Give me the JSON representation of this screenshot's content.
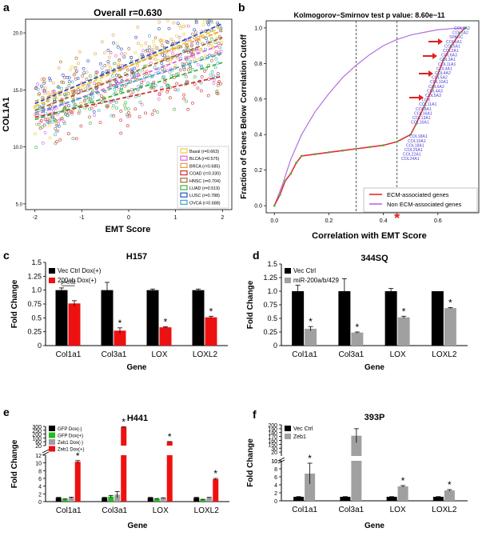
{
  "chart_data": [
    {
      "panel": "a",
      "type": "scatter",
      "title": "Overall r=0.630",
      "xlabel": "EMT Score",
      "ylabel": "COL1A1",
      "xlim": [
        -2.2,
        2.2
      ],
      "ylim": [
        4.5,
        21.2
      ],
      "xticks": [
        -2,
        -1,
        0,
        1,
        2
      ],
      "xtick_labels": [
        "-2",
        "-1",
        "0",
        "1",
        "2"
      ],
      "yticks": [
        5,
        10,
        15,
        20
      ],
      "ytick_labels": [
        "5.0",
        "10.0",
        "15.0",
        "20.0"
      ],
      "legend_position": "bottom-right",
      "series": [
        {
          "name": "Basal (r=0.663)",
          "color": "#e8d23a",
          "fit": [
            [
              -2,
              13.6
            ],
            [
              2,
              20.5
            ]
          ]
        },
        {
          "name": "BLCA (r=0.575)",
          "color": "#e060e0",
          "fit": [
            [
              -2,
              12.8
            ],
            [
              2,
              19.0
            ]
          ]
        },
        {
          "name": "BRCA (r=0.685)",
          "color": "#e8a040",
          "fit": [
            [
              -2,
              14.0
            ],
            [
              2,
              20.2
            ]
          ]
        },
        {
          "name": "COAD (r=0.330)",
          "color": "#d03030",
          "fit": [
            [
              -2,
              12.6
            ],
            [
              2,
              16.2
            ]
          ]
        },
        {
          "name": "HNSC (r=0.704)",
          "color": "#a06830",
          "fit": [
            [
              -2,
              13.2
            ],
            [
              2,
              19.6
            ]
          ]
        },
        {
          "name": "LUAD (r=0.519)",
          "color": "#40b040",
          "fit": [
            [
              -2,
              12.4
            ],
            [
              2,
              17.4
            ]
          ]
        },
        {
          "name": "LUSC (r=0.788)",
          "color": "#3050c0",
          "fit": [
            [
              -2,
              13.8
            ],
            [
              2,
              20.8
            ]
          ]
        },
        {
          "name": "OVCA (r=0.688)",
          "color": "#40a8c8",
          "fit": [
            [
              -2,
              13.0
            ],
            [
              2,
              18.2
            ]
          ]
        }
      ]
    },
    {
      "panel": "b",
      "type": "line",
      "title": "Kolmogorov−Smirnov test p value: 8.60e−11",
      "xlabel": "Correlation with EMT Score",
      "ylabel": "Fraction of Genes Below Correlation Cutoff",
      "xlim": [
        -0.03,
        0.75
      ],
      "ylim": [
        -0.04,
        1.04
      ],
      "xticks": [
        0,
        0.2,
        0.4,
        0.6
      ],
      "xtick_labels": [
        "0.0",
        "0.2",
        "0.4",
        "0.6"
      ],
      "yticks": [
        0,
        0.2,
        0.4,
        0.6,
        0.8,
        1
      ],
      "ytick_labels": [
        "0.0",
        "0.2",
        "0.4",
        "0.6",
        "0.8",
        "1.0"
      ],
      "vlines": [
        0.3,
        0.45
      ],
      "asterisk_x": 0.45,
      "series": [
        {
          "name": "ECM-associated genes",
          "color": "#e03030",
          "x": [
            0.0,
            0.02,
            0.04,
            0.06,
            0.08,
            0.1,
            0.15,
            0.2,
            0.25,
            0.3,
            0.35,
            0.4,
            0.45,
            0.5,
            0.52,
            0.55,
            0.58,
            0.6,
            0.62,
            0.65,
            0.68,
            0.7
          ],
          "y": [
            0.0,
            0.06,
            0.14,
            0.18,
            0.24,
            0.28,
            0.29,
            0.3,
            0.31,
            0.32,
            0.33,
            0.34,
            0.36,
            0.4,
            0.46,
            0.56,
            0.66,
            0.74,
            0.82,
            0.9,
            0.97,
            1.0
          ]
        },
        {
          "name": "Non ECM-associated genes",
          "color": "#b070e0",
          "x": [
            0.0,
            0.03,
            0.06,
            0.1,
            0.15,
            0.2,
            0.25,
            0.3,
            0.35,
            0.4,
            0.45,
            0.5,
            0.55,
            0.6,
            0.65,
            0.7
          ],
          "y": [
            0.0,
            0.12,
            0.26,
            0.4,
            0.53,
            0.63,
            0.72,
            0.79,
            0.85,
            0.9,
            0.935,
            0.96,
            0.975,
            0.99,
            0.996,
            1.0
          ]
        }
      ],
      "gene_labels": [
        "COL1A2",
        "COL1A2",
        "SPARC",
        "COL6A1",
        "COL5A1",
        "COL2A1",
        "COL6A3",
        "COL3A1",
        "COL11A1",
        "COL4A1",
        "COL4A2",
        "COL5A2",
        "COL10A1",
        "COL6A2",
        "COL4A3",
        "COL5A3",
        "LOX",
        "COL11A1",
        "COL8A1",
        "COL16A1",
        "COL13A1",
        "COL16A1",
        "COL18A1",
        "COL10A1",
        "COL18A1",
        "COL25A1",
        "COL22A1",
        "COL24A1"
      ]
    },
    {
      "panel": "c",
      "type": "bar",
      "title": "H157",
      "xlabel": "Gene",
      "ylabel": "Fold Change",
      "ylim": [
        0,
        1.5
      ],
      "yticks": [
        0,
        0.25,
        0.5,
        0.75,
        1,
        1.25,
        1.5
      ],
      "ytick_labels": [
        "0",
        "0.25",
        "0.5",
        "0.75",
        "1.0",
        "1.25",
        "1.5"
      ],
      "categories": [
        "Col1a1",
        "Col3a1",
        "LOX",
        "LOXL2"
      ],
      "series": [
        {
          "name": "Vec Ctrl Dox(+)",
          "color": "#000000",
          "values": [
            1.0,
            1.0,
            1.0,
            1.0
          ],
          "errors": [
            0.04,
            0.14,
            0.02,
            0.02
          ]
        },
        {
          "name": "200ab Dox(+)",
          "color": "#ee1111",
          "values": [
            0.76,
            0.27,
            0.33,
            0.51
          ],
          "errors": [
            0.05,
            0.05,
            0.01,
            0.02
          ]
        }
      ],
      "significance": [
        "",
        "*",
        "*",
        "*"
      ],
      "annotation": "p=0.02"
    },
    {
      "panel": "d",
      "type": "bar",
      "title": "344SQ",
      "xlabel": "Gene",
      "ylabel": "Fold Change",
      "ylim": [
        0,
        1.5
      ],
      "yticks": [
        0,
        0.25,
        0.5,
        0.75,
        1,
        1.25,
        1.5
      ],
      "ytick_labels": [
        "0",
        "0.25",
        "0.5",
        "0.75",
        "1.0",
        "1.25",
        "1.5"
      ],
      "categories": [
        "Col1a1",
        "Col3a1",
        "LOX",
        "LOXL2"
      ],
      "series": [
        {
          "name": "Vec Ctrl",
          "color": "#000000",
          "values": [
            1.0,
            1.0,
            1.0,
            1.0
          ],
          "errors": [
            0.11,
            0.23,
            0.05,
            0.0
          ]
        },
        {
          "name": "miR-200a/b/429",
          "color": "#a0a0a0",
          "values": [
            0.31,
            0.24,
            0.52,
            0.69
          ],
          "errors": [
            0.04,
            0.01,
            0.02,
            0.01
          ]
        }
      ],
      "significance": [
        "*",
        "*",
        "*",
        "*"
      ]
    },
    {
      "panel": "e",
      "type": "bar",
      "title": "H441",
      "xlabel": "Gene",
      "ylabel": "Fold Change",
      "broken_axis": true,
      "lower_ylim": [
        0,
        12
      ],
      "lower_yticks": [
        0,
        2,
        4,
        6,
        8,
        10,
        12
      ],
      "lower_ytick_labels": [
        "0",
        "2",
        "4",
        "6",
        "8",
        "10",
        "12"
      ],
      "upper_ylim": [
        20,
        300
      ],
      "upper_yticks": [
        20,
        60,
        100,
        200,
        250,
        300
      ],
      "upper_ytick_labels": [
        "20",
        "60",
        "100",
        "200",
        "250",
        "300"
      ],
      "categories": [
        "Col1a1",
        "Col3a1",
        "LOX",
        "LOXL2"
      ],
      "series": [
        {
          "name": "GFP Dox(-)",
          "color": "#000000",
          "values": [
            1.0,
            1.0,
            1.0,
            1.0
          ],
          "errors": [
            0.1,
            0.1,
            0.1,
            0.1
          ]
        },
        {
          "name": "GFP Dox(+)",
          "color": "#22bb22",
          "values": [
            0.6,
            1.3,
            0.7,
            0.5
          ],
          "errors": [
            0.1,
            0.3,
            0.1,
            0.1
          ]
        },
        {
          "name": "Zeb1 Dox(-)",
          "color": "#a0a0a0",
          "values": [
            1.0,
            1.8,
            0.9,
            1.0
          ],
          "errors": [
            0.15,
            0.8,
            0.1,
            0.1
          ]
        },
        {
          "name": "Zeb1 Dox(+)",
          "color": "#ee1111",
          "values": [
            10.3,
            290,
            60,
            5.8
          ],
          "errors": [
            0.3,
            5,
            2,
            0.2
          ]
        }
      ],
      "significance": [
        "*",
        "*",
        "*",
        "*"
      ]
    },
    {
      "panel": "f",
      "type": "bar",
      "title": "393P",
      "xlabel": "Gene",
      "ylabel": "Fold Change",
      "broken_axis": true,
      "lower_ylim": [
        0,
        10
      ],
      "lower_yticks": [
        0,
        2,
        4,
        6,
        8,
        10
      ],
      "lower_ytick_labels": [
        "0",
        "2",
        "4",
        "6",
        "8",
        "10"
      ],
      "upper_ylim": [
        10,
        200
      ],
      "upper_yticks": [
        10,
        20,
        30,
        150,
        160,
        170,
        180,
        190,
        200
      ],
      "upper_ytick_labels": [
        "10",
        "20",
        "30",
        "150",
        "160",
        "170",
        "180",
        "190",
        "200"
      ],
      "categories": [
        "Col1a1",
        "Col3a1",
        "LOX",
        "LOXL2"
      ],
      "series": [
        {
          "name": "Vec Ctrl",
          "color": "#000000",
          "values": [
            1.0,
            1.0,
            1.0,
            1.0
          ],
          "errors": [
            0.05,
            0.05,
            0.05,
            0.05
          ]
        },
        {
          "name": "Zeb1",
          "color": "#a0a0a0",
          "values": [
            6.8,
            172,
            3.6,
            2.6
          ],
          "errors": [
            2.6,
            18,
            0.2,
            0.2
          ]
        }
      ],
      "significance": [
        "*",
        "",
        "*",
        "*"
      ]
    }
  ]
}
